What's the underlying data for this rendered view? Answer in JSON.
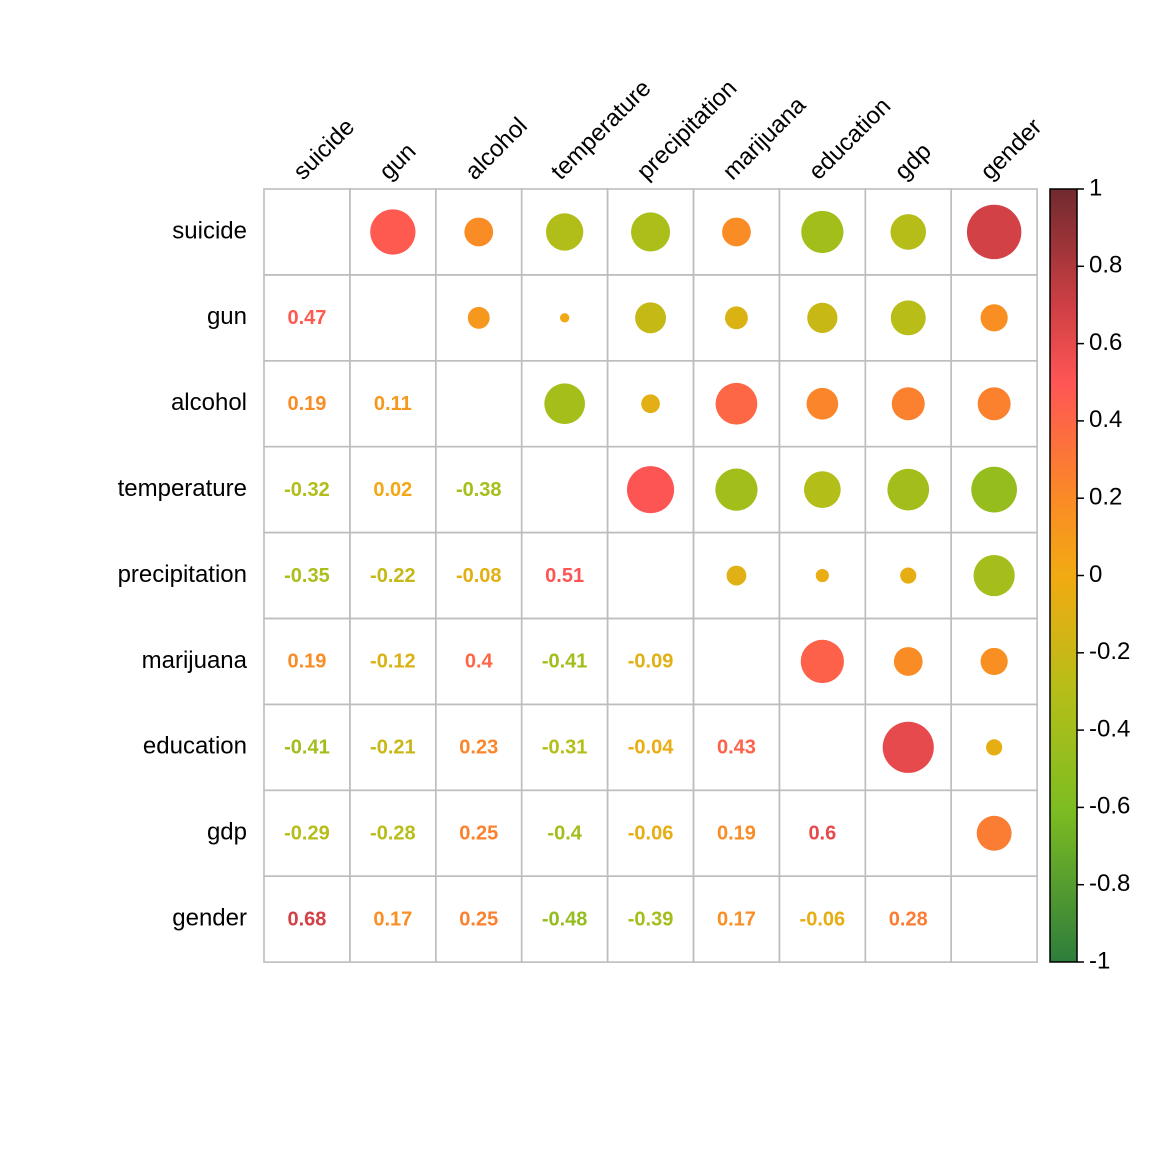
{
  "chart_data": {
    "type": "heatmap",
    "variables": [
      "suicide",
      "gun",
      "alcohol",
      "temperature",
      "precipitation",
      "marijuana",
      "education",
      "gdp",
      "gender"
    ],
    "lower_triangle_labels": [
      [
        "",
        "",
        "",
        "",
        "",
        "",
        "",
        "",
        ""
      ],
      [
        "0.47",
        "",
        "",
        "",
        "",
        "",
        "",
        "",
        ""
      ],
      [
        "0.19",
        "0.11",
        "",
        "",
        "",
        "",
        "",
        "",
        ""
      ],
      [
        "-0.32",
        "0.02",
        "-0.38",
        "",
        "",
        "",
        "",
        "",
        ""
      ],
      [
        "-0.35",
        "-0.22",
        "-0.08",
        "0.51",
        "",
        "",
        "",
        "",
        ""
      ],
      [
        "0.19",
        "-0.12",
        "0.4",
        "-0.41",
        "-0.09",
        "",
        "",
        "",
        ""
      ],
      [
        "-0.41",
        "-0.21",
        "0.23",
        "-0.31",
        "-0.04",
        "0.43",
        "",
        "",
        ""
      ],
      [
        "-0.29",
        "-0.28",
        "0.25",
        "-0.4",
        "-0.06",
        "0.19",
        "0.6",
        "",
        ""
      ],
      [
        "0.68",
        "0.17",
        "0.25",
        "-0.48",
        "-0.39",
        "0.17",
        "-0.06",
        "0.28",
        ""
      ]
    ],
    "colorbar": {
      "min": -1,
      "max": 1,
      "tick_labels": [
        "1",
        "0.8",
        "0.6",
        "0.4",
        "0.2",
        "0",
        "-0.2",
        "-0.4",
        "-0.6",
        "-0.8",
        "-1"
      ],
      "stops": [
        {
          "value": -1.0,
          "color": "#2e7d3c"
        },
        {
          "value": -0.6,
          "color": "#7ebd21"
        },
        {
          "value": -0.3,
          "color": "#b5be18"
        },
        {
          "value": 0.0,
          "color": "#f2aa12"
        },
        {
          "value": 0.2,
          "color": "#fa8a26"
        },
        {
          "value": 0.5,
          "color": "#ff5555"
        },
        {
          "value": 0.7,
          "color": "#cd3f44"
        },
        {
          "value": 1.0,
          "color": "#702a2e"
        }
      ]
    },
    "grid_color": "#bdbdbd",
    "upper_triangle_glyph": "circle sized by |r|, colored by r",
    "grid": true,
    "legend_placement": "right"
  }
}
